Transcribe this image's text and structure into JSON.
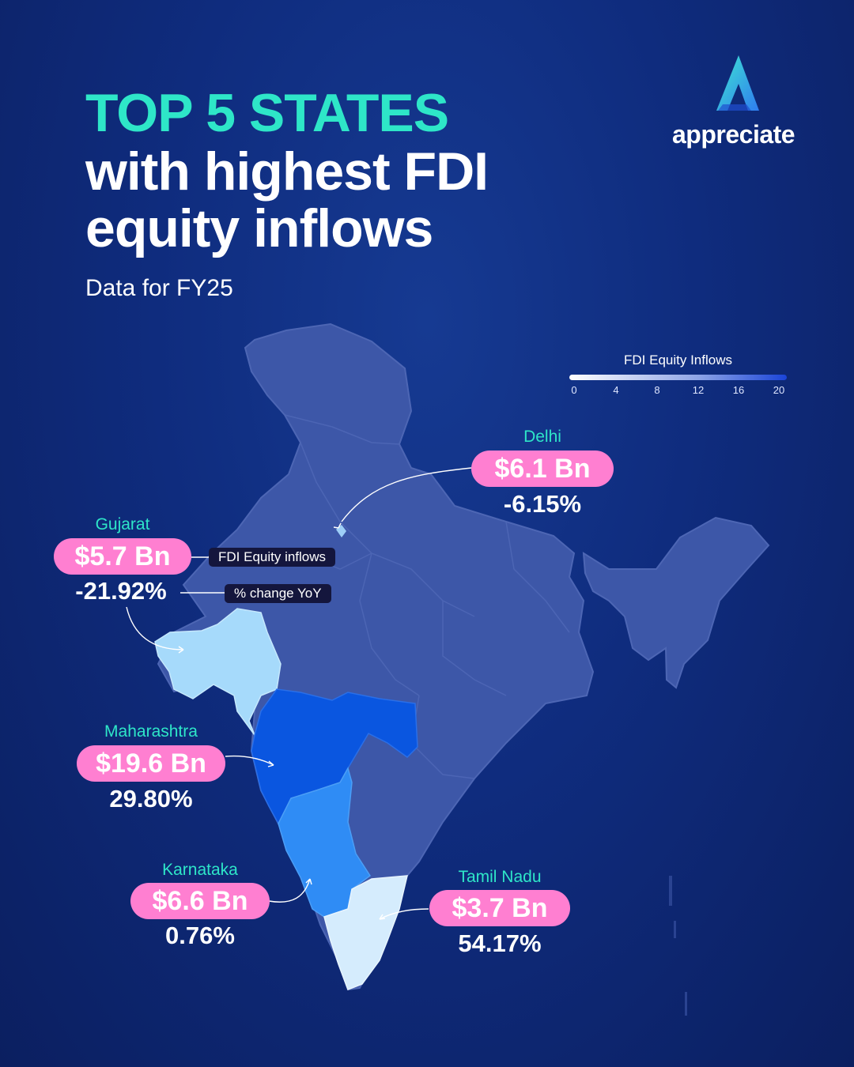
{
  "header": {
    "title_line1": "TOP 5 STATES",
    "title_line2": "with highest FDI",
    "title_line3": "equity inflows",
    "subtitle": "Data for FY25"
  },
  "brand": {
    "name": "appreciate",
    "logo_icon": "a-triangle-logo"
  },
  "legend": {
    "title": "FDI Equity Inflows",
    "ticks": [
      "0",
      "4",
      "8",
      "12",
      "16",
      "20"
    ],
    "min": 0,
    "max": 20
  },
  "annotations": {
    "inflow_label": "FDI Equity inflows",
    "change_label": "% change YoY"
  },
  "states": [
    {
      "name": "Delhi",
      "value": "$6.1 Bn",
      "change": "-6.15%",
      "fdi_bn": 6.1
    },
    {
      "name": "Gujarat",
      "value": "$5.7 Bn",
      "change": "-21.92%",
      "fdi_bn": 5.7
    },
    {
      "name": "Maharashtra",
      "value": "$19.6 Bn",
      "change": "29.80%",
      "fdi_bn": 19.6
    },
    {
      "name": "Karnataka",
      "value": "$6.6 Bn",
      "change": "0.76%",
      "fdi_bn": 6.6
    },
    {
      "name": "Tamil Nadu",
      "value": "$3.7 Bn",
      "change": "54.17%",
      "fdi_bn": 3.7
    }
  ],
  "colors": {
    "accent": "#2ee6c8",
    "pill": "#ff7fd1",
    "base_state": "#3d57a8",
    "maharashtra": "#0a56e0",
    "karnataka": "#2f8cf5",
    "gujarat": "#a6dafb",
    "tamil_nadu": "#d5ecfd",
    "delhi": "#9ecff7"
  }
}
